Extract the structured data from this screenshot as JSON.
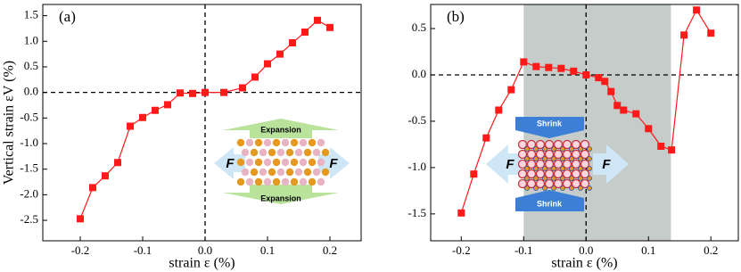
{
  "chart_data": [
    {
      "type": "line",
      "panel_label": "(a)",
      "xlabel": "strain ε (%)",
      "ylabel": "Vertical strain εV (%)",
      "x": [
        -0.2,
        -0.18,
        -0.16,
        -0.14,
        -0.12,
        -0.1,
        -0.08,
        -0.06,
        -0.04,
        -0.02,
        0,
        0.03,
        0.06,
        0.08,
        0.1,
        0.12,
        0.14,
        0.16,
        0.18,
        0.2
      ],
      "values": [
        -2.47,
        -1.86,
        -1.63,
        -1.37,
        -0.66,
        -0.49,
        -0.35,
        -0.24,
        -0.01,
        -0.02,
        0,
        0.0,
        0.09,
        0.3,
        0.56,
        0.75,
        0.97,
        1.18,
        1.41,
        1.27
      ],
      "color": "#ff1a1a",
      "xlim": [
        -0.26,
        0.25
      ],
      "ylim": [
        -2.9,
        1.72
      ],
      "xticks": [
        -0.2,
        -0.1,
        {
          "value": 0,
          "label": "0.0"
        },
        0.1,
        0.2
      ],
      "yticks": [
        1.5,
        {
          "value": 1,
          "label": "1.0"
        },
        0.5,
        {
          "value": 0,
          "label": "0.0"
        },
        -0.5,
        {
          "value": -1,
          "label": "-1.0"
        },
        -1.5,
        {
          "value": -2,
          "label": "-2.0"
        },
        -2.5
      ],
      "zero_lines": true,
      "inset_labels": [
        "Expansion",
        "Expansion",
        "F",
        "F"
      ]
    },
    {
      "type": "line",
      "panel_label": "(b)",
      "xlabel": "strain ε (%)",
      "x": [
        -0.2,
        -0.18,
        -0.16,
        -0.14,
        -0.12,
        -0.1,
        -0.08,
        -0.06,
        -0.04,
        -0.02,
        0,
        0.02,
        0.03,
        0.04,
        0.05,
        0.06,
        0.08,
        0.1,
        0.12,
        0.137,
        0.157,
        0.177,
        0.2
      ],
      "values": [
        -1.49,
        -1.07,
        -0.68,
        -0.38,
        -0.16,
        0.14,
        0.09,
        0.08,
        0.07,
        0.04,
        0,
        -0.03,
        -0.07,
        -0.18,
        -0.33,
        -0.38,
        -0.42,
        -0.58,
        -0.77,
        -0.81,
        0.43,
        0.7,
        0.45
      ],
      "color": "#ff1a1a",
      "xlim": [
        -0.249,
        0.244
      ],
      "ylim": [
        -1.79,
        0.76
      ],
      "xticks": [
        -0.2,
        -0.1,
        {
          "value": 0,
          "label": "0.0"
        },
        0.1,
        0.2
      ],
      "yticks": [
        0.5,
        {
          "value": 0,
          "label": "0.0"
        },
        -0.5,
        {
          "value": -1,
          "label": "-1.0"
        },
        -1.5
      ],
      "zero_lines": true,
      "shaded_xrange": [
        -0.1,
        0.136
      ],
      "shaded_color": "#c5ccc9",
      "inset_labels": [
        "Shrink",
        "Shrink",
        "F",
        "F"
      ]
    }
  ]
}
